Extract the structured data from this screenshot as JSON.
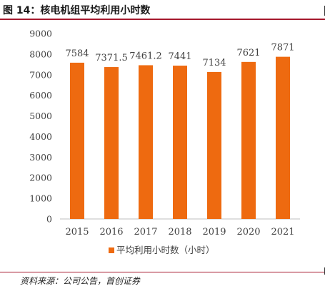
{
  "header": {
    "title": "图 14：核电机组平均利用小时数"
  },
  "footer": {
    "source": "资料来源：公司公告，首创证券"
  },
  "colors": {
    "bar": "#ee6a10",
    "accent": "#a6192e",
    "axis": "#bfbfbf",
    "text": "#404040"
  },
  "chart_data": {
    "type": "bar",
    "categories": [
      "2015",
      "2016",
      "2017",
      "2018",
      "2019",
      "2020",
      "2021"
    ],
    "series": [
      {
        "name": "平均利用小时数（小时）",
        "values": [
          7584,
          7371.5,
          7461.2,
          7441,
          7134,
          7621,
          7871
        ]
      }
    ],
    "data_labels": [
      "7584",
      "7371.5",
      "7461.2",
      "7441",
      "7134",
      "7621",
      "7871"
    ],
    "ylim": [
      0,
      9000
    ],
    "y_ticks": [
      "0",
      "1000",
      "2000",
      "3000",
      "4000",
      "5000",
      "6000",
      "7000",
      "8000",
      "9000"
    ],
    "grid": false,
    "legend_position": "bottom"
  }
}
